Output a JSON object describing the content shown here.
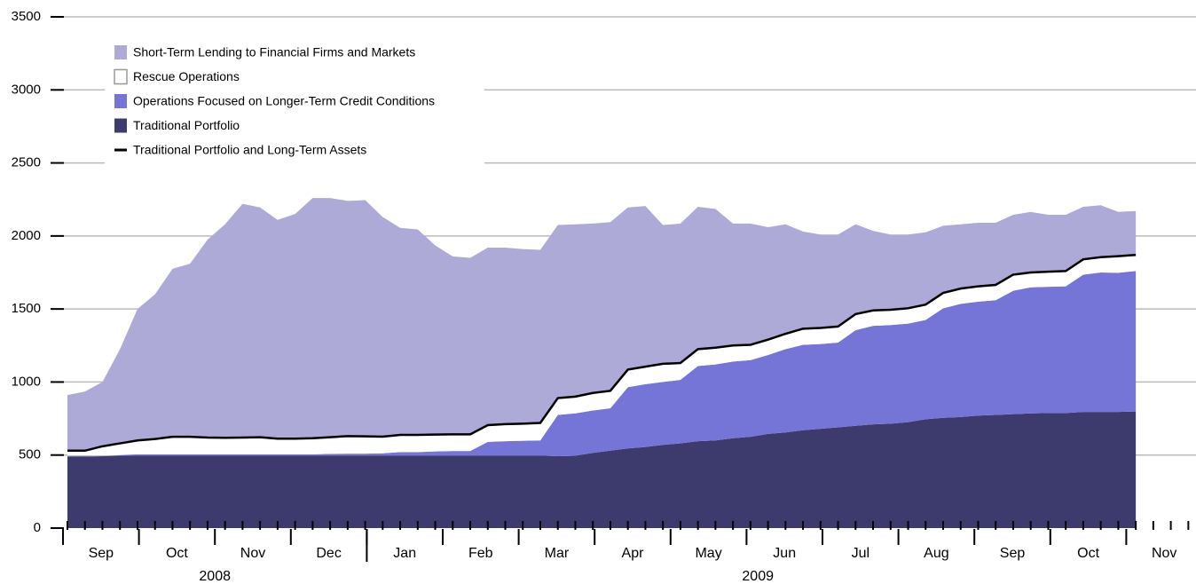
{
  "chart_data": {
    "type": "stacked_area",
    "categories": [
      null,
      null,
      null,
      null,
      null,
      null,
      null,
      null,
      null,
      null,
      null,
      null,
      null,
      null,
      null,
      null,
      null,
      null,
      null,
      null,
      null,
      null,
      null,
      null,
      null,
      null,
      null,
      null,
      null,
      null,
      null,
      null,
      null,
      null,
      null,
      null,
      null,
      null,
      null,
      null,
      null,
      null,
      null,
      null,
      null,
      null,
      null,
      null,
      null,
      null,
      null,
      null,
      null,
      null,
      null,
      null,
      null,
      null,
      null,
      null,
      null,
      null
    ],
    "months": [
      "Sep",
      "Oct",
      "Nov",
      "Dec",
      "Jan",
      "Feb",
      "Mar",
      "Apr",
      "May",
      "Jun",
      "Jul",
      "Aug",
      "Sep",
      "Oct",
      "Nov"
    ],
    "years": [
      "2008",
      "2009"
    ],
    "ylim": [
      0,
      3500
    ],
    "yticks": [
      0,
      500,
      1000,
      1500,
      2000,
      2500,
      3000,
      3500
    ],
    "grid": true,
    "legend": "upper left",
    "series": [
      {
        "name": "Short-Term Lending to Financial Firms and Markets",
        "color": "#adaad8",
        "values": [
          381,
          405,
          440,
          645,
          900,
          990,
          1150,
          1185,
          1355,
          1462,
          1600,
          1573,
          1498,
          1538,
          1645,
          1638,
          1610,
          1617,
          1504,
          1417,
          1407,
          1295,
          1218,
          1208,
          1215,
          1208,
          1195,
          1185,
          1185,
          1180,
          1160,
          1155,
          1110,
          1100,
          950,
          955,
          975,
          950,
          835,
          830,
          770,
          750,
          665,
          640,
          630,
          615,
          545,
          515,
          505,
          495,
          460,
          440,
          435,
          425,
          410,
          415,
          390,
          385,
          360,
          355,
          303,
          300
        ]
      },
      {
        "name": "Rescue Operations",
        "color": "#ffffff",
        "values": [
          35,
          35,
          65,
          80,
          95,
          105,
          120,
          120,
          115,
          113,
          115,
          117,
          107,
          107,
          110,
          114,
          120,
          118,
          114,
          118,
          118,
          115,
          114,
          114,
          115,
          117,
          117,
          120,
          115,
          115,
          120,
          120,
          120,
          120,
          125,
          115,
          115,
          115,
          110,
          105,
          105,
          105,
          110,
          110,
          110,
          110,
          105,
          105,
          105,
          105,
          105,
          105,
          105,
          105,
          110,
          102,
          103,
          105,
          105,
          105,
          114,
          110
        ]
      },
      {
        "name": "Operations Focused on Longer-Term Credit Conditions",
        "color": "#7575d8",
        "values": [
          5,
          5,
          3,
          5,
          8,
          8,
          8,
          8,
          8,
          8,
          8,
          8,
          8,
          8,
          8,
          11,
          13,
          13,
          15,
          23,
          23,
          28,
          31,
          31,
          93,
          98,
          101,
          103,
          283,
          290,
          290,
          290,
          420,
          430,
          430,
          435,
          515,
          520,
          525,
          525,
          540,
          570,
          585,
          580,
          580,
          655,
          675,
          675,
          675,
          680,
          750,
          775,
          780,
          785,
          845,
          863,
          864,
          867,
          940,
          955,
          953,
          962
        ]
      },
      {
        "name": "Traditional Portfolio",
        "color": "#3d3b6e",
        "values": [
          490,
          490,
          492,
          495,
          497,
          497,
          497,
          497,
          497,
          497,
          497,
          497,
          497,
          497,
          497,
          497,
          497,
          497,
          497,
          497,
          497,
          497,
          497,
          497,
          497,
          497,
          497,
          497,
          492,
          495,
          515,
          530,
          545,
          555,
          570,
          580,
          595,
          600,
          615,
          625,
          645,
          655,
          670,
          680,
          690,
          700,
          710,
          715,
          725,
          745,
          755,
          760,
          770,
          775,
          780,
          785,
          788,
          788,
          795,
          795,
          795,
          798
        ]
      },
      {
        "name": "Traditional Portfolio and Long-Term Assets",
        "color": "#000000",
        "type": "line",
        "values": [
          530,
          530,
          560,
          580,
          600,
          610,
          625,
          625,
          620,
          618,
          620,
          622,
          612,
          612,
          615,
          622,
          630,
          628,
          626,
          638,
          638,
          640,
          642,
          642,
          705,
          712,
          715,
          720,
          890,
          900,
          925,
          940,
          1085,
          1105,
          1125,
          1130,
          1225,
          1235,
          1250,
          1255,
          1290,
          1330,
          1365,
          1370,
          1380,
          1465,
          1490,
          1495,
          1505,
          1530,
          1610,
          1640,
          1655,
          1665,
          1735,
          1750,
          1755,
          1760,
          1840,
          1855,
          1862,
          1870
        ]
      }
    ]
  }
}
